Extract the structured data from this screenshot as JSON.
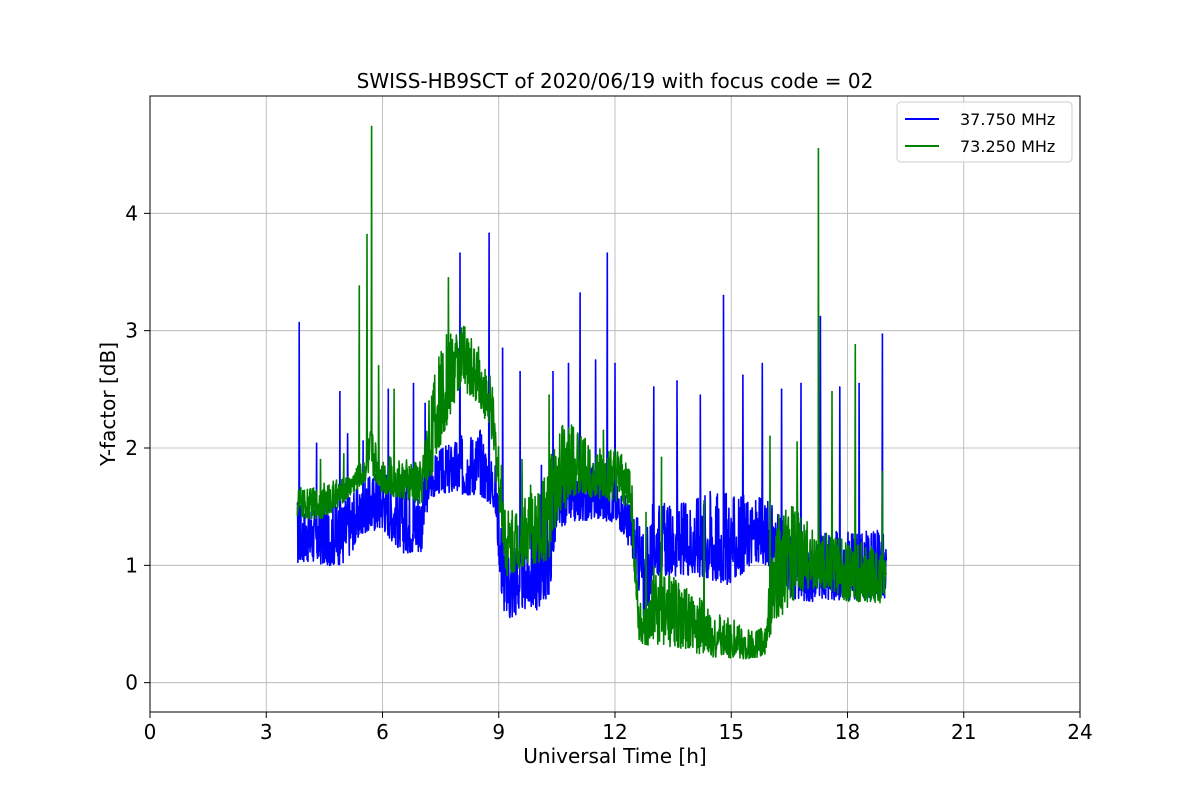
{
  "chart_data": {
    "type": "line",
    "title": "SWISS-HB9SCT of 2020/06/19 with focus code = 02",
    "xlabel": "Universal Time [h]",
    "ylabel": "Y-factor [dB]",
    "xlim": [
      0,
      24
    ],
    "ylim": [
      -0.25,
      5.0
    ],
    "xticks": [
      0,
      3,
      6,
      9,
      12,
      15,
      18,
      21,
      24
    ],
    "yticks": [
      0,
      1,
      2,
      3,
      4
    ],
    "grid": true,
    "legend_position": "top-right",
    "series": [
      {
        "name": "37.750 MHz",
        "color": "#0000ff",
        "envelope": {
          "x": [
            3.8,
            4.0,
            4.5,
            5.0,
            5.5,
            6.0,
            6.5,
            7.0,
            7.2,
            7.5,
            8.0,
            8.5,
            8.9,
            9.1,
            9.3,
            9.6,
            10.0,
            10.3,
            10.5,
            11.0,
            11.5,
            12.0,
            12.3,
            12.6,
            12.8,
            13.0,
            13.5,
            14.0,
            14.5,
            15.0,
            15.5,
            16.0,
            16.3,
            16.6,
            17.0,
            17.5,
            18.0,
            18.5,
            19.0
          ],
          "lo": [
            0.9,
            0.95,
            0.9,
            0.9,
            1.2,
            1.2,
            1.0,
            1.0,
            1.5,
            1.55,
            1.5,
            1.5,
            1.4,
            0.5,
            0.4,
            0.5,
            0.5,
            0.6,
            1.25,
            1.3,
            1.3,
            1.3,
            1.15,
            0.7,
            0.2,
            0.8,
            0.8,
            0.8,
            0.7,
            0.7,
            0.9,
            0.9,
            0.8,
            0.6,
            0.6,
            0.6,
            0.6,
            0.6,
            0.6
          ],
          "hi": [
            1.6,
            1.5,
            1.55,
            1.6,
            1.7,
            1.9,
            1.7,
            1.7,
            1.9,
            2.0,
            2.1,
            2.2,
            1.9,
            1.3,
            1.2,
            1.3,
            1.3,
            1.5,
            1.7,
            1.8,
            1.9,
            1.75,
            1.6,
            1.4,
            1.3,
            1.6,
            1.5,
            1.6,
            1.7,
            1.6,
            1.6,
            1.55,
            1.4,
            1.3,
            1.2,
            1.3,
            1.3,
            1.3,
            1.3
          ]
        },
        "spikes": [
          [
            3.85,
            3.07
          ],
          [
            4.3,
            2.04
          ],
          [
            4.9,
            2.48
          ],
          [
            5.1,
            2.12
          ],
          [
            5.5,
            2.06
          ],
          [
            6.15,
            2.5
          ],
          [
            6.8,
            2.55
          ],
          [
            7.1,
            2.38
          ],
          [
            8.0,
            3.66
          ],
          [
            8.75,
            3.83
          ],
          [
            9.1,
            2.85
          ],
          [
            9.55,
            2.65
          ],
          [
            10.1,
            1.85
          ],
          [
            10.4,
            2.65
          ],
          [
            10.8,
            2.72
          ],
          [
            11.1,
            3.32
          ],
          [
            11.5,
            2.75
          ],
          [
            11.8,
            3.66
          ],
          [
            12.0,
            2.72
          ],
          [
            13.0,
            2.52
          ],
          [
            13.6,
            2.57
          ],
          [
            14.2,
            2.45
          ],
          [
            14.8,
            3.3
          ],
          [
            15.3,
            2.62
          ],
          [
            15.8,
            2.72
          ],
          [
            16.3,
            2.5
          ],
          [
            16.8,
            2.55
          ],
          [
            17.3,
            3.12
          ],
          [
            17.8,
            2.52
          ],
          [
            18.3,
            2.55
          ],
          [
            18.9,
            2.97
          ]
        ]
      },
      {
        "name": "73.250 MHz",
        "color": "#008000",
        "envelope": {
          "x": [
            3.8,
            4.0,
            4.5,
            5.0,
            5.5,
            5.7,
            6.0,
            6.5,
            7.0,
            7.3,
            7.6,
            8.0,
            8.5,
            8.8,
            9.0,
            9.2,
            9.5,
            9.8,
            10.0,
            10.3,
            10.6,
            11.0,
            11.5,
            12.0,
            12.4,
            12.6,
            12.8,
            13.0,
            13.5,
            14.0,
            14.5,
            15.0,
            15.5,
            15.9,
            16.1,
            16.5,
            17.0,
            17.2,
            17.5,
            18.0,
            18.5,
            19.0
          ],
          "lo": [
            1.35,
            1.35,
            1.35,
            1.5,
            1.65,
            1.7,
            1.55,
            1.5,
            1.45,
            1.65,
            2.0,
            2.4,
            2.3,
            2.0,
            1.4,
            0.8,
            0.85,
            0.9,
            0.9,
            0.9,
            1.3,
            1.5,
            1.5,
            1.45,
            1.4,
            0.3,
            0.2,
            0.2,
            0.2,
            0.15,
            0.15,
            0.15,
            0.15,
            0.2,
            0.3,
            0.5,
            0.7,
            0.7,
            0.7,
            0.6,
            0.6,
            0.6
          ],
          "hi": [
            1.7,
            1.65,
            1.7,
            1.75,
            1.9,
            2.2,
            1.95,
            1.9,
            1.9,
            2.6,
            2.95,
            3.1,
            2.85,
            2.6,
            2.1,
            1.5,
            1.6,
            1.7,
            1.6,
            1.9,
            2.2,
            2.2,
            2.0,
            2.0,
            1.9,
            0.8,
            0.6,
            1.0,
            0.9,
            0.8,
            0.6,
            0.55,
            0.45,
            0.5,
            1.4,
            1.6,
            1.4,
            1.3,
            1.3,
            1.2,
            1.2,
            1.1
          ]
        },
        "spikes": [
          [
            4.4,
            1.9
          ],
          [
            5.0,
            1.95
          ],
          [
            5.4,
            3.38
          ],
          [
            5.6,
            3.82
          ],
          [
            5.72,
            4.74
          ],
          [
            5.9,
            2.7
          ],
          [
            6.3,
            2.5
          ],
          [
            7.2,
            2.4
          ],
          [
            7.7,
            3.45
          ],
          [
            9.6,
            1.9
          ],
          [
            10.3,
            2.45
          ],
          [
            11.7,
            2.15
          ],
          [
            12.8,
            1.45
          ],
          [
            13.2,
            1.92
          ],
          [
            14.3,
            1.55
          ],
          [
            16.0,
            2.1
          ],
          [
            16.7,
            2.05
          ],
          [
            17.25,
            4.55
          ],
          [
            17.6,
            2.48
          ],
          [
            18.2,
            2.88
          ],
          [
            18.9,
            1.8
          ]
        ]
      }
    ]
  }
}
